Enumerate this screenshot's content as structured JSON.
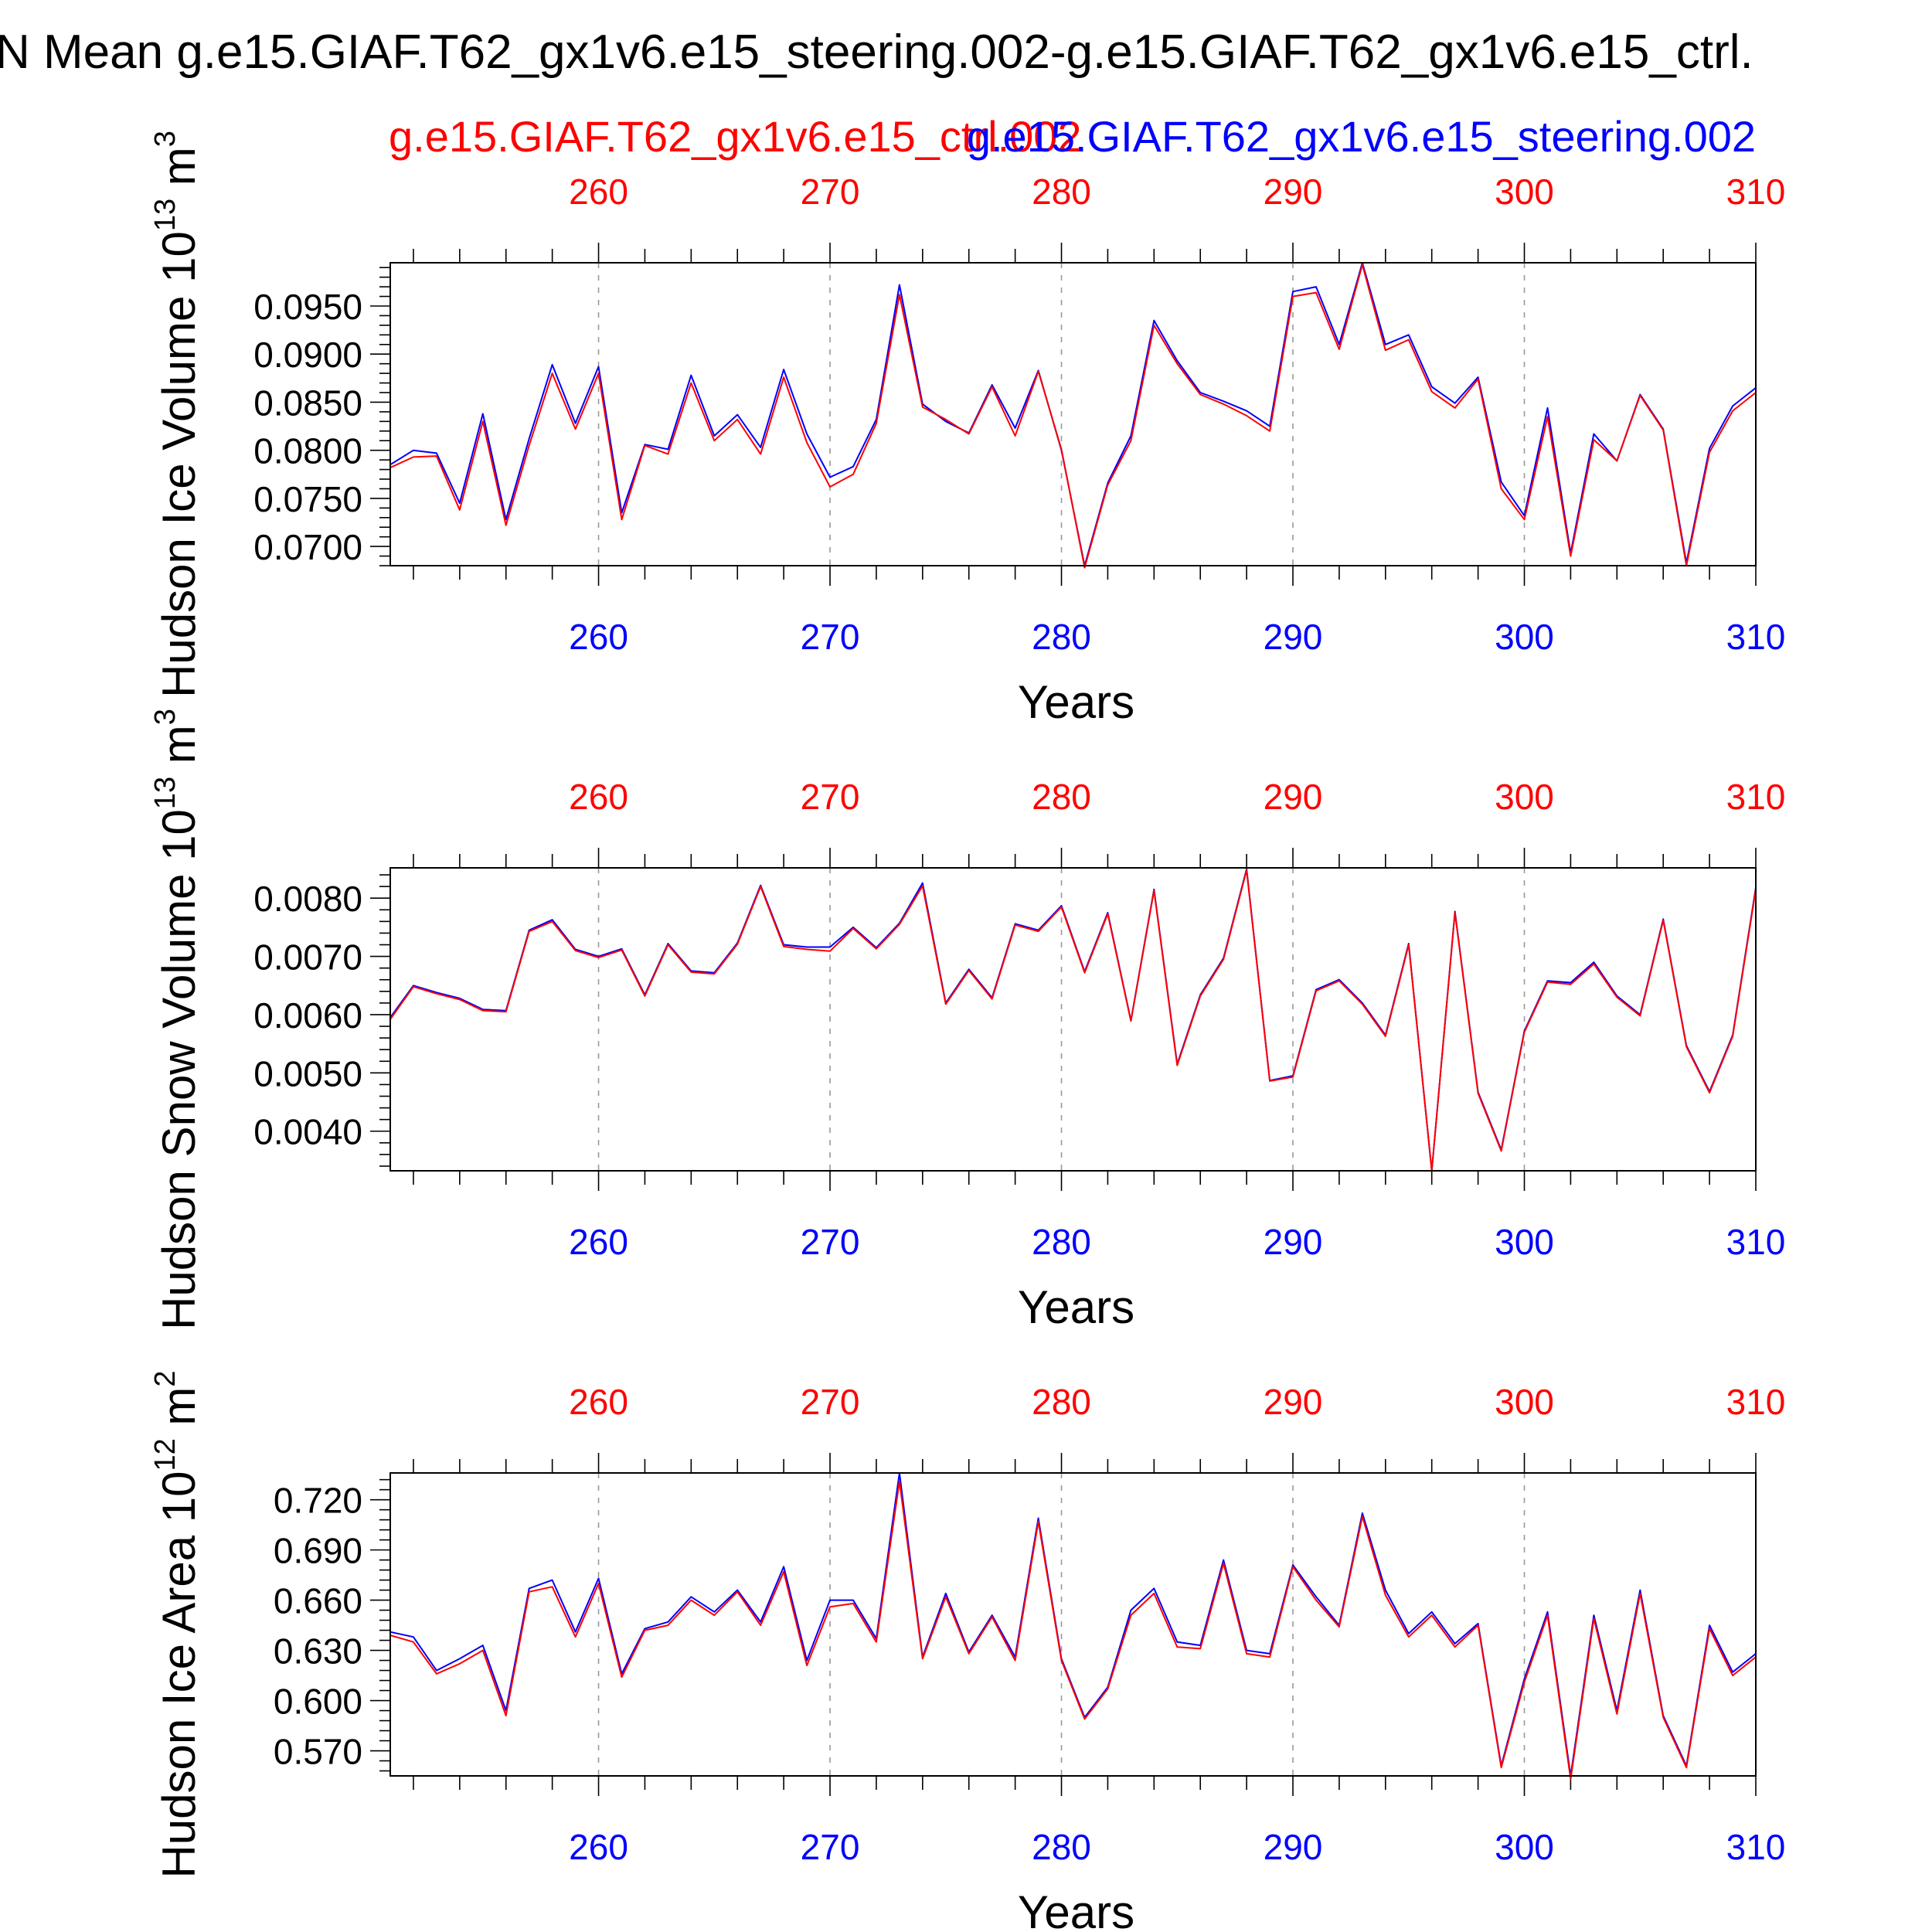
{
  "figure_title": "N Mean g.e15.GIAF.T62_gx1v6.e15_steering.002-g.e15.GIAF.T62_gx1v6.e15_ctrl.",
  "legend": {
    "ctrl_label": "g.e15.GIAF.T62_gx1v6.e15_ctrl.002",
    "steering_label": "g.e15.GIAF.T62_gx1v6.e15_steering.002"
  },
  "colors": {
    "ctrl": "#ff0000",
    "steering": "#0000ff",
    "axis": "#000000",
    "grid": "#999999"
  },
  "chart_data": [
    {
      "type": "line",
      "title": "",
      "xlabel": "Years",
      "ylabel": "Hudson Ice Volume 10",
      "ylabel_exp": "13",
      "ylabel_unit": "m",
      "ylabel_unit_exp": "3",
      "xlim": [
        251,
        310
      ],
      "ylim": [
        0.068,
        0.0995
      ],
      "xticks": [
        260,
        270,
        280,
        290,
        300,
        310
      ],
      "yticks": [
        0.07,
        0.075,
        0.08,
        0.085,
        0.09,
        0.095
      ],
      "ytick_labels": [
        "0.0700",
        "0.0750",
        "0.0800",
        "0.0850",
        "0.0900",
        "0.0950"
      ],
      "x": [
        251,
        252,
        253,
        254,
        255,
        256,
        257,
        258,
        259,
        260,
        261,
        262,
        263,
        264,
        265,
        266,
        267,
        268,
        269,
        270,
        271,
        272,
        273,
        274,
        275,
        276,
        277,
        278,
        279,
        280,
        281,
        282,
        283,
        284,
        285,
        286,
        287,
        288,
        289,
        290,
        291,
        292,
        293,
        294,
        295,
        296,
        297,
        298,
        299,
        300,
        301,
        302,
        303,
        304,
        305,
        306,
        307,
        308,
        309,
        310
      ],
      "series": [
        {
          "name": "g.e15.GIAF.T62_gx1v6.e15_steering.002",
          "color": "#0000ff",
          "values": [
            0.0785,
            0.08,
            0.0797,
            0.0745,
            0.0838,
            0.0728,
            0.0812,
            0.0889,
            0.0828,
            0.0887,
            0.0735,
            0.0806,
            0.0801,
            0.0878,
            0.0815,
            0.0837,
            0.0803,
            0.0884,
            0.0817,
            0.0772,
            0.0783,
            0.0832,
            0.0972,
            0.0848,
            0.083,
            0.0818,
            0.0868,
            0.0823,
            0.0883,
            0.08,
            0.068,
            0.0766,
            0.0815,
            0.0935,
            0.0893,
            0.086,
            0.0851,
            0.0841,
            0.0825,
            0.0965,
            0.097,
            0.091,
            0.0995,
            0.091,
            0.092,
            0.0866,
            0.0849,
            0.0876,
            0.0767,
            0.0732,
            0.0844,
            0.0693,
            0.0817,
            0.0789,
            0.0858,
            0.0822,
            0.0683,
            0.0802,
            0.0846,
            0.0865
          ]
        },
        {
          "name": "g.e15.GIAF.T62_gx1v6.e15_ctrl.002",
          "color": "#ff0000",
          "values": [
            0.0782,
            0.0793,
            0.0794,
            0.0738,
            0.083,
            0.0722,
            0.0805,
            0.088,
            0.0822,
            0.088,
            0.0728,
            0.0805,
            0.0796,
            0.087,
            0.081,
            0.0832,
            0.0796,
            0.0876,
            0.0808,
            0.0762,
            0.0775,
            0.0828,
            0.0962,
            0.0845,
            0.0832,
            0.0817,
            0.0866,
            0.0815,
            0.0882,
            0.0801,
            0.0678,
            0.0764,
            0.081,
            0.093,
            0.089,
            0.0858,
            0.0848,
            0.0836,
            0.082,
            0.096,
            0.0964,
            0.0905,
            0.0993,
            0.0904,
            0.0915,
            0.0861,
            0.0844,
            0.0874,
            0.076,
            0.0728,
            0.0835,
            0.069,
            0.0811,
            0.0789,
            0.0857,
            0.0821,
            0.068,
            0.0798,
            0.0841,
            0.086
          ]
        }
      ]
    },
    {
      "type": "line",
      "title": "",
      "xlabel": "Years",
      "ylabel": "Hudson Snow Volume 10",
      "ylabel_exp": "13",
      "ylabel_unit": "m",
      "ylabel_unit_exp": "3",
      "xlim": [
        251,
        310
      ],
      "ylim": [
        0.00332,
        0.00852
      ],
      "xticks": [
        260,
        270,
        280,
        290,
        300,
        310
      ],
      "yticks": [
        0.004,
        0.005,
        0.006,
        0.007,
        0.008
      ],
      "ytick_labels": [
        "0.0040",
        "0.0050",
        "0.0060",
        "0.0070",
        "0.0080"
      ],
      "x": [
        251,
        252,
        253,
        254,
        255,
        256,
        257,
        258,
        259,
        260,
        261,
        262,
        263,
        264,
        265,
        266,
        267,
        268,
        269,
        270,
        271,
        272,
        273,
        274,
        275,
        276,
        277,
        278,
        279,
        280,
        281,
        282,
        283,
        284,
        285,
        286,
        287,
        288,
        289,
        290,
        291,
        292,
        293,
        294,
        295,
        296,
        297,
        298,
        299,
        300,
        301,
        302,
        303,
        304,
        305,
        306,
        307,
        308,
        309,
        310
      ],
      "series": [
        {
          "name": "g.e15.GIAF.T62_gx1v6.e15_steering.002",
          "color": "#0000ff",
          "values": [
            0.00595,
            0.0065,
            0.00638,
            0.00628,
            0.00609,
            0.00607,
            0.00745,
            0.00763,
            0.00712,
            0.007,
            0.00713,
            0.00634,
            0.00722,
            0.00675,
            0.00672,
            0.00723,
            0.00822,
            0.0072,
            0.00716,
            0.00716,
            0.0075,
            0.00715,
            0.00757,
            0.00826,
            0.0062,
            0.00678,
            0.00629,
            0.00756,
            0.00745,
            0.00787,
            0.00674,
            0.00775,
            0.0059,
            0.00815,
            0.00515,
            0.00634,
            0.00697,
            0.0085,
            0.00487,
            0.00495,
            0.00643,
            0.0066,
            0.0062,
            0.00565,
            0.00722,
            0.00332,
            0.00777,
            0.00467,
            0.00368,
            0.00572,
            0.00658,
            0.00655,
            0.0069,
            0.00632,
            0.006,
            0.00764,
            0.00547,
            0.00468,
            0.00565,
            0.00818
          ]
        },
        {
          "name": "g.e15.GIAF.T62_gx1v6.e15_ctrl.002",
          "color": "#ff0000",
          "values": [
            0.00592,
            0.00648,
            0.00636,
            0.00626,
            0.00607,
            0.00605,
            0.00743,
            0.0076,
            0.0071,
            0.00698,
            0.00711,
            0.00632,
            0.0072,
            0.00673,
            0.0067,
            0.00721,
            0.0082,
            0.00717,
            0.00712,
            0.00709,
            0.00748,
            0.00713,
            0.00755,
            0.00821,
            0.00618,
            0.00676,
            0.00627,
            0.00754,
            0.00743,
            0.00785,
            0.00672,
            0.00773,
            0.00589,
            0.00813,
            0.00513,
            0.00632,
            0.00695,
            0.00848,
            0.00486,
            0.00493,
            0.00641,
            0.00658,
            0.00618,
            0.00563,
            0.0072,
            0.00332,
            0.00775,
            0.00465,
            0.00366,
            0.0057,
            0.00656,
            0.00652,
            0.00687,
            0.0063,
            0.00598,
            0.00762,
            0.00545,
            0.00466,
            0.00563,
            0.00815
          ]
        }
      ]
    },
    {
      "type": "line",
      "title": "",
      "xlabel": "Years",
      "ylabel": "Hudson Ice Area 10",
      "ylabel_exp": "12",
      "ylabel_unit": "m",
      "ylabel_unit_exp": "2",
      "xlim": [
        251,
        310
      ],
      "ylim": [
        0.555,
        0.736
      ],
      "xticks": [
        260,
        270,
        280,
        290,
        300,
        310
      ],
      "yticks": [
        0.57,
        0.6,
        0.63,
        0.66,
        0.69,
        0.72
      ],
      "ytick_labels": [
        "0.570",
        "0.600",
        "0.630",
        "0.660",
        "0.690",
        "0.720"
      ],
      "x": [
        251,
        252,
        253,
        254,
        255,
        256,
        257,
        258,
        259,
        260,
        261,
        262,
        263,
        264,
        265,
        266,
        267,
        268,
        269,
        270,
        271,
        272,
        273,
        274,
        275,
        276,
        277,
        278,
        279,
        280,
        281,
        282,
        283,
        284,
        285,
        286,
        287,
        288,
        289,
        290,
        291,
        292,
        293,
        294,
        295,
        296,
        297,
        298,
        299,
        300,
        301,
        302,
        303,
        304,
        305,
        306,
        307,
        308,
        309,
        310
      ],
      "series": [
        {
          "name": "g.e15.GIAF.T62_gx1v6.e15_steering.002",
          "color": "#0000ff",
          "values": [
            0.641,
            0.638,
            0.618,
            0.625,
            0.633,
            0.594,
            0.667,
            0.672,
            0.641,
            0.673,
            0.616,
            0.643,
            0.647,
            0.662,
            0.653,
            0.666,
            0.647,
            0.68,
            0.624,
            0.66,
            0.66,
            0.637,
            0.736,
            0.626,
            0.664,
            0.629,
            0.651,
            0.626,
            0.709,
            0.625,
            0.59,
            0.608,
            0.654,
            0.667,
            0.635,
            0.633,
            0.684,
            0.63,
            0.628,
            0.681,
            0.662,
            0.645,
            0.712,
            0.666,
            0.64,
            0.653,
            0.634,
            0.646,
            0.561,
            0.613,
            0.653,
            0.555,
            0.651,
            0.594,
            0.666,
            0.591,
            0.561,
            0.645,
            0.617,
            0.628
          ]
        },
        {
          "name": "g.e15.GIAF.T62_gx1v6.e15_ctrl.002",
          "color": "#ff0000",
          "values": [
            0.639,
            0.635,
            0.616,
            0.622,
            0.63,
            0.591,
            0.665,
            0.668,
            0.638,
            0.67,
            0.614,
            0.642,
            0.645,
            0.66,
            0.651,
            0.665,
            0.645,
            0.677,
            0.621,
            0.656,
            0.658,
            0.635,
            0.731,
            0.625,
            0.662,
            0.628,
            0.65,
            0.624,
            0.707,
            0.624,
            0.589,
            0.607,
            0.651,
            0.664,
            0.632,
            0.631,
            0.682,
            0.628,
            0.626,
            0.68,
            0.66,
            0.644,
            0.71,
            0.663,
            0.638,
            0.651,
            0.632,
            0.645,
            0.56,
            0.611,
            0.651,
            0.553,
            0.649,
            0.592,
            0.664,
            0.59,
            0.56,
            0.643,
            0.615,
            0.626
          ]
        }
      ]
    }
  ]
}
